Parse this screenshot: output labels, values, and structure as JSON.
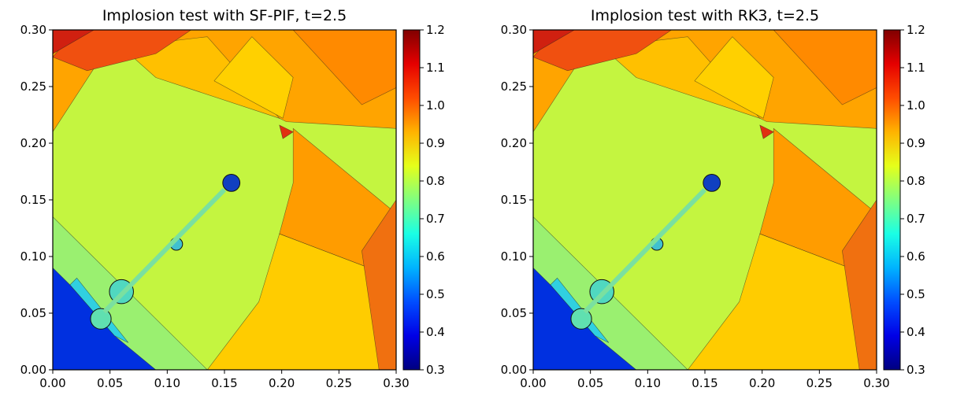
{
  "chart_data": [
    {
      "type": "contour",
      "title": "Implosion test with SF-PIF, t=2.5",
      "colormap": "jet",
      "xlim": [
        0,
        0.3
      ],
      "ylim": [
        0,
        0.3
      ],
      "xticks": [
        {
          "value": 0,
          "label": "0.00"
        },
        0.05,
        {
          "value": 0.1,
          "label": "0.10"
        },
        0.15,
        {
          "value": 0.2,
          "label": "0.20"
        },
        0.25,
        {
          "value": 0.3,
          "label": "0.30"
        }
      ],
      "yticks": [
        {
          "value": 0,
          "label": "0.00"
        },
        0.05,
        {
          "value": 0.1,
          "label": "0.10"
        },
        0.15,
        {
          "value": 0.2,
          "label": "0.20"
        },
        0.25,
        {
          "value": 0.3,
          "label": "0.30"
        }
      ],
      "clim": [
        0.3,
        1.2
      ],
      "cticks": [
        0.3,
        0.4,
        0.5,
        0.6,
        0.7,
        0.8,
        0.9,
        {
          "value": 1,
          "label": "1.0"
        },
        1.1,
        1.2
      ]
    },
    {
      "type": "contour",
      "title": "Implosion test with RK3, t=2.5",
      "colormap": "jet",
      "xlim": [
        0,
        0.3
      ],
      "ylim": [
        0,
        0.3
      ],
      "xticks": [
        {
          "value": 0,
          "label": "0.00"
        },
        0.05,
        {
          "value": 0.1,
          "label": "0.10"
        },
        0.15,
        {
          "value": 0.2,
          "label": "0.20"
        },
        0.25,
        {
          "value": 0.3,
          "label": "0.30"
        }
      ],
      "yticks": [
        {
          "value": 0,
          "label": "0.00"
        },
        0.05,
        {
          "value": 0.1,
          "label": "0.10"
        },
        0.15,
        {
          "value": 0.2,
          "label": "0.20"
        },
        0.25,
        {
          "value": 0.3,
          "label": "0.30"
        }
      ],
      "clim": [
        0.3,
        1.2
      ],
      "cticks": [
        0.3,
        0.4,
        0.5,
        0.6,
        0.7,
        0.8,
        0.9,
        {
          "value": 1,
          "label": "1.0"
        },
        1.1,
        1.2
      ]
    }
  ]
}
